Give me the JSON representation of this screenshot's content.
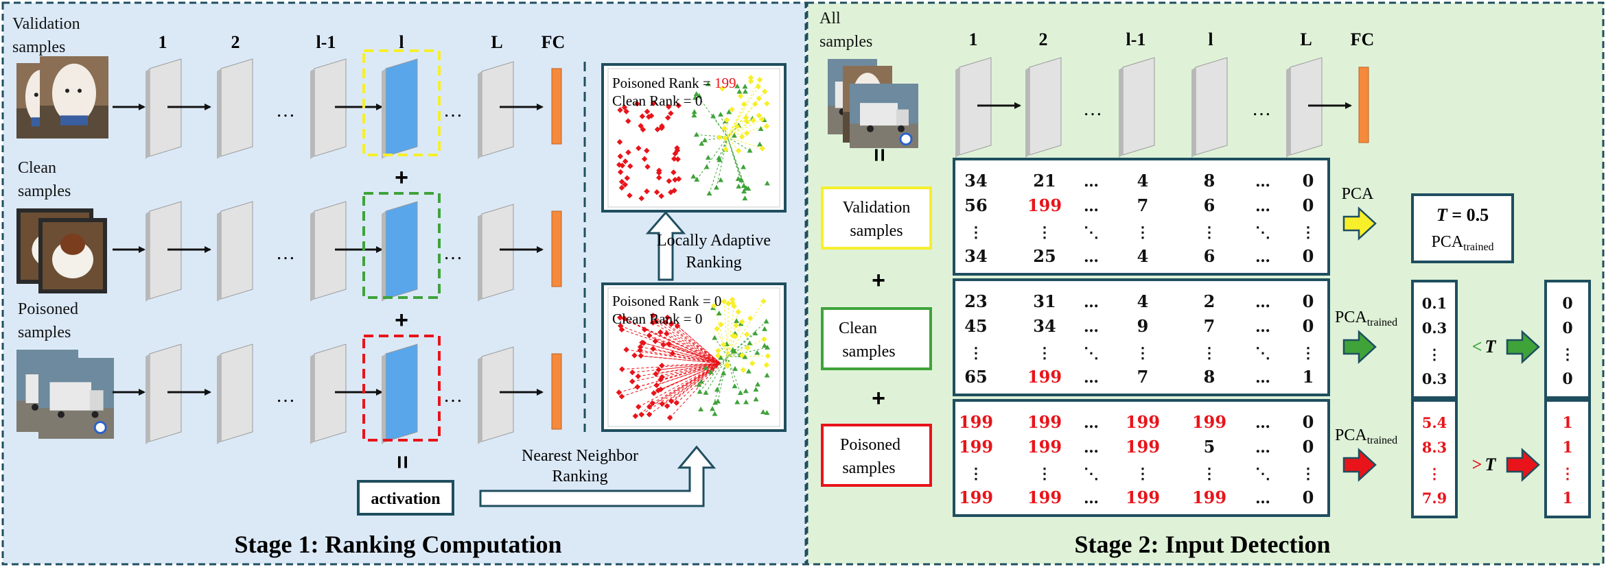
{
  "stage1": {
    "title": "Stage 1: Ranking Computation",
    "layer_headers": [
      "1",
      "2",
      "l-1",
      "l",
      "L",
      "FC"
    ],
    "row_labels": [
      "Validation samples",
      "Clean samples",
      "Poisoned samples"
    ],
    "plus": "+",
    "equals": "=",
    "activation_label": "activation",
    "nearest_neighbor_label": "Nearest Neighbor Ranking",
    "locally_adaptive_label": "Locally Adaptive Ranking",
    "plot_top": {
      "poisoned_rank_prefix": "Poisoned Rank = ",
      "poisoned_rank": "199",
      "clean_rank": "Clean Rank = 0"
    },
    "plot_bottom": {
      "poisoned_rank": "Poisoned Rank = 0",
      "clean_rank": "Clean Rank = 0"
    }
  },
  "stage2": {
    "title": "Stage 2: Input Detection",
    "all_samples_label": "All samples",
    "layer_headers": [
      "1",
      "2",
      "l-1",
      "l",
      "L",
      "FC"
    ],
    "sample_boxes": [
      "Validation samples",
      "Clean samples",
      "Poisoned samples"
    ],
    "matrices": [
      [
        [
          "34",
          "21",
          "…",
          "4",
          "8",
          "…",
          "0"
        ],
        [
          "56",
          "199",
          "…",
          "7",
          "6",
          "…",
          "0"
        ],
        [
          "⋮",
          "⋮",
          "⋱",
          "⋮",
          "⋮",
          "⋱",
          "⋮"
        ],
        [
          "34",
          "25",
          "…",
          "4",
          "6",
          "…",
          "0"
        ]
      ],
      [
        [
          "23",
          "31",
          "…",
          "4",
          "2",
          "…",
          "0"
        ],
        [
          "45",
          "34",
          "…",
          "9",
          "7",
          "…",
          "0"
        ],
        [
          "⋮",
          "⋮",
          "⋱",
          "⋮",
          "⋮",
          "⋱",
          "⋮"
        ],
        [
          "65",
          "199",
          "…",
          "7",
          "8",
          "…",
          "1"
        ]
      ],
      [
        [
          "199",
          "199",
          "…",
          "199",
          "199",
          "…",
          "0"
        ],
        [
          "199",
          "199",
          "…",
          "199",
          "5",
          "…",
          "0"
        ],
        [
          "⋮",
          "⋮",
          "⋱",
          "⋮",
          "⋮",
          "⋱",
          "⋮"
        ],
        [
          "199",
          "199",
          "…",
          "199",
          "199",
          "…",
          "0"
        ]
      ]
    ],
    "pca_label": "PCA",
    "pca_trained_label": "PCA",
    "pca_trained_sub": "trained",
    "threshold_label": "T = 0.5",
    "clean_scores": [
      "0.1",
      "0.3",
      "⋮",
      "0.3"
    ],
    "poisoned_scores": [
      "5.4",
      "8.3",
      "⋮",
      "7.9"
    ],
    "less_than": "<",
    "greater_than": ">",
    "t_symbol": "T",
    "clean_outputs": [
      "0",
      "0",
      "⋮",
      "0"
    ],
    "poisoned_outputs": [
      "1",
      "1",
      "⋮",
      "1"
    ]
  },
  "colors": {
    "stage1_bg": "#dbe9f7",
    "stage2_bg": "#dff2d8",
    "frame": "#1f4e5f",
    "layer_gray": "#e2e2e2",
    "layer_blue": "#5aa6ea",
    "fc_orange": "#f58a3c",
    "yellow": "#f7ef2a",
    "green": "#3fa33a",
    "red": "#e8141a"
  },
  "icons": [
    "dog-photo-icon",
    "truck-photo-icon",
    "arrow-icon"
  ]
}
